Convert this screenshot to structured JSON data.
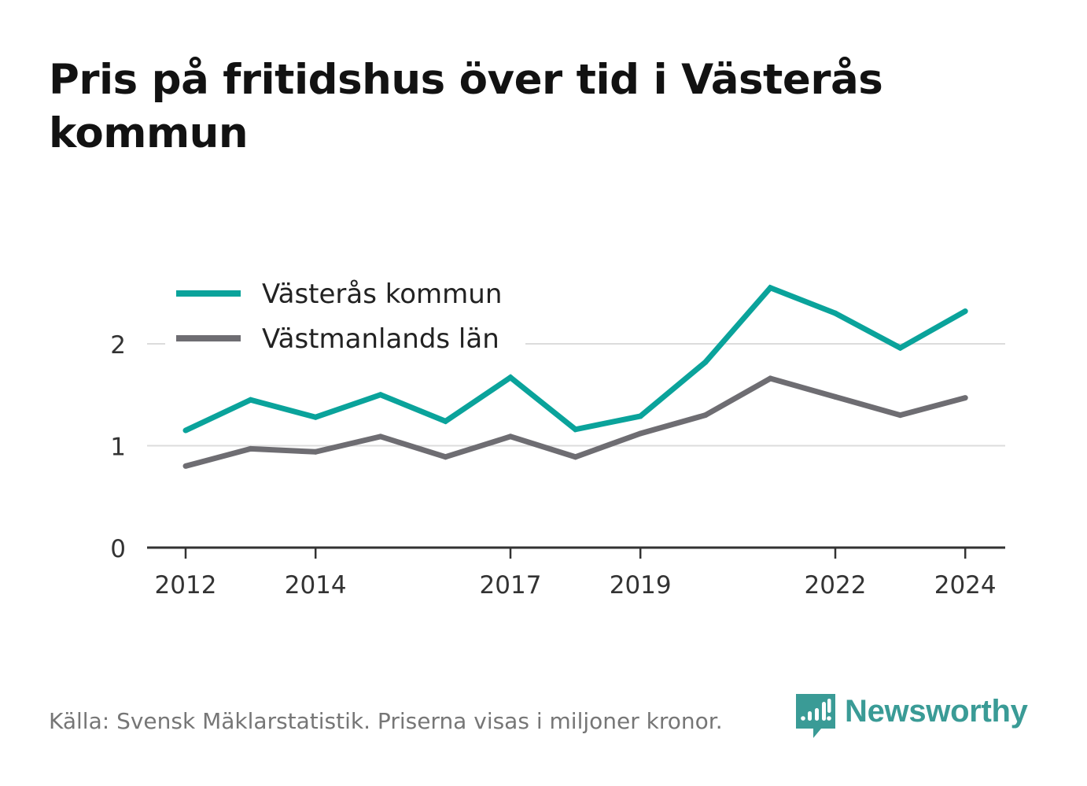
{
  "title": "Pris på fritidshus över tid i Västerås kommun",
  "footer": {
    "source": "Källa: Svensk Mäklarstatistik. Priserna visas i miljoner kronor.",
    "brand": "Newsworthy"
  },
  "colors": {
    "vasteras": "#0aa39b",
    "vastmanland": "#6e6d72",
    "grid": "#dcdcdc",
    "axis": "#333333",
    "brand": "#3a9b96"
  },
  "chart_data": {
    "type": "line",
    "title": "Pris på fritidshus över tid i Västerås kommun",
    "xlabel": "",
    "ylabel": "",
    "x": [
      2012,
      2013,
      2014,
      2015,
      2016,
      2017,
      2018,
      2019,
      2020,
      2021,
      2022,
      2023,
      2024
    ],
    "x_ticks": [
      "2012",
      "2014",
      "2017",
      "2019",
      "2022",
      "2024"
    ],
    "y_ticks": [
      "0",
      "1",
      "2"
    ],
    "ylim": [
      0,
      2.8
    ],
    "grid": true,
    "legend": "top-left",
    "series": [
      {
        "name": "Västerås kommun",
        "color": "#0aa39b",
        "values": [
          1.15,
          1.45,
          1.28,
          1.5,
          1.24,
          1.67,
          1.16,
          1.29,
          1.82,
          2.55,
          2.3,
          1.96,
          2.32
        ]
      },
      {
        "name": "Västmanlands län",
        "color": "#6e6d72",
        "values": [
          0.8,
          0.97,
          0.94,
          1.09,
          0.89,
          1.09,
          0.89,
          1.12,
          1.3,
          1.66,
          1.48,
          1.3,
          1.47
        ]
      }
    ]
  }
}
